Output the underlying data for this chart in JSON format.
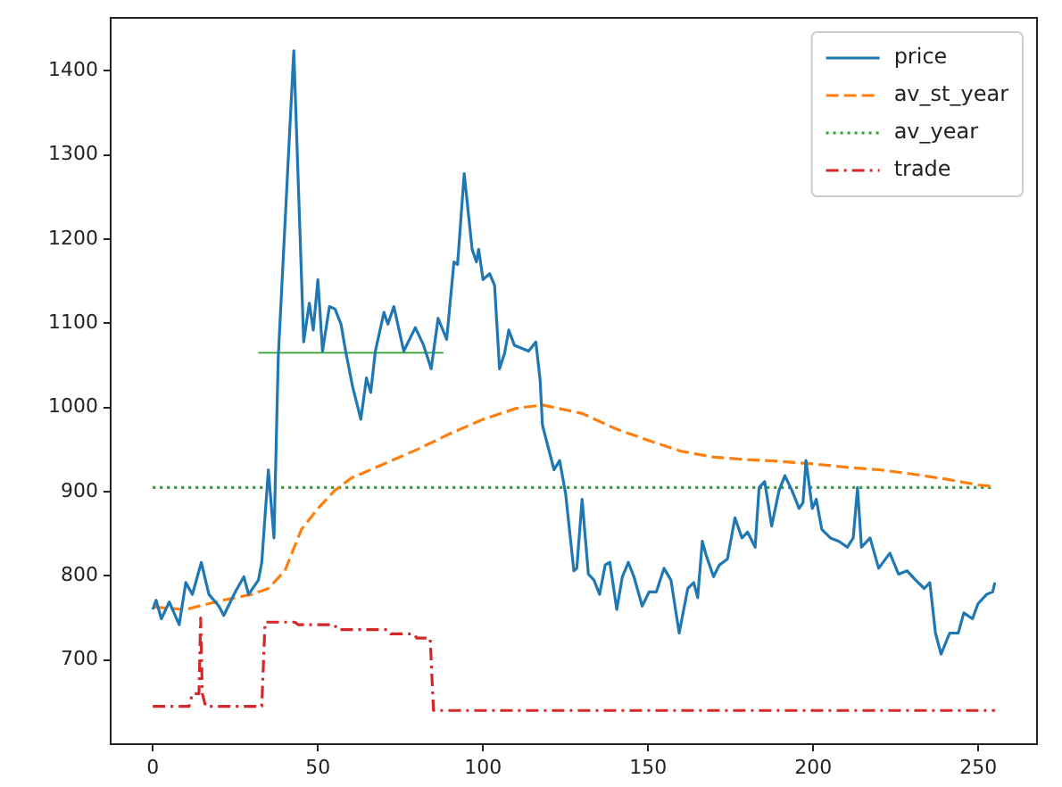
{
  "chart_data": {
    "type": "line",
    "xlim": [
      -12.75,
      267.75
    ],
    "ylim": [
      600,
      1463
    ],
    "xticks": [
      0,
      50,
      100,
      150,
      200,
      250
    ],
    "yticks": [
      700,
      800,
      900,
      1000,
      1100,
      1200,
      1300,
      1400
    ],
    "grid": false,
    "legend": "top right",
    "marker": "none",
    "series": [
      {
        "name": "price",
        "color": "#1f77b4",
        "line_style": "solid",
        "x": [
          0,
          1,
          2.6,
          5,
          8,
          10,
          12,
          14.7,
          17,
          20,
          21.5,
          25,
          27.6,
          29,
          32,
          33,
          35,
          36.7,
          38,
          41,
          42.7,
          45.7,
          47.4,
          48.6,
          50,
          51.4,
          53.5,
          55.2,
          57,
          58.4,
          60.5,
          63,
          64.7,
          66,
          67.4,
          70,
          71.2,
          73,
          76,
          79.5,
          82,
          84.3,
          86.4,
          89,
          91.2,
          92.3,
          94.3,
          96.7,
          98,
          98.7,
          100,
          102,
          103.5,
          105,
          106.5,
          107.8,
          109.5,
          113.8,
          116,
          117.3,
          118,
          121.5,
          123.2,
          125,
          127.5,
          128.4,
          130,
          131.9,
          133.6,
          135.3,
          137,
          138.4,
          140.5,
          142.2,
          144,
          145.7,
          148.2,
          150.3,
          152.5,
          154.8,
          156.9,
          159.4,
          162,
          163.8,
          165,
          166.4,
          167.6,
          169.8,
          171.6,
          174,
          176.3,
          178.4,
          180.1,
          182.4,
          183.6,
          185.3,
          187.4,
          189.6,
          191.4,
          193.6,
          195.7,
          196.9,
          197.8,
          199.7,
          200.9,
          202.6,
          205.2,
          207.8,
          210.3,
          212.1,
          213.4,
          214.6,
          217.2,
          219.8,
          223.2,
          225.8,
          228.4,
          231,
          233.6,
          235.3,
          237,
          238.7,
          241.3,
          243.9,
          245.6,
          248.2,
          249.9,
          252.5,
          254.3,
          255
        ],
        "values": [
          760,
          771,
          749,
          769,
          742,
          792,
          778,
          816,
          778,
          764,
          753,
          781,
          799,
          778,
          795,
          816,
          926,
          845,
          1060,
          1293,
          1424,
          1078,
          1124,
          1092,
          1152,
          1067,
          1120,
          1117,
          1099,
          1067,
          1025,
          986,
          1035,
          1018,
          1067,
          1113,
          1099,
          1120,
          1067,
          1095,
          1074,
          1046,
          1106,
          1081,
          1173,
          1170,
          1278,
          1188,
          1173,
          1188,
          1152,
          1159,
          1145,
          1046,
          1064,
          1092,
          1074,
          1067,
          1078,
          1032,
          979,
          926,
          937,
          898,
          806,
          809,
          891,
          802,
          795,
          778,
          813,
          816,
          760,
          799,
          816,
          799,
          764,
          781,
          781,
          809,
          795,
          732,
          785,
          792,
          774,
          841,
          824,
          799,
          813,
          820,
          869,
          845,
          852,
          834,
          905,
          912,
          859,
          901,
          919,
          901,
          880,
          887,
          937,
          880,
          891,
          855,
          845,
          841,
          834,
          845,
          905,
          834,
          845,
          809,
          827,
          802,
          806,
          795,
          785,
          792,
          732,
          707,
          732,
          732,
          756,
          749,
          767,
          778,
          781,
          792
        ]
      },
      {
        "name": "av_st_year",
        "color": "#ff7f0e",
        "line_style": "dashed",
        "x": [
          0,
          10,
          20,
          30,
          35,
          40,
          45,
          50,
          55,
          60,
          70,
          80,
          90,
          100,
          110,
          118,
          130,
          140,
          150,
          160,
          170,
          180,
          190,
          200,
          210,
          220,
          230,
          240,
          250,
          255
        ],
        "values": [
          763,
          760,
          770,
          778,
          785,
          806,
          855,
          880,
          901,
          916,
          933,
          950,
          969,
          986,
          999,
          1003,
          993,
          975,
          961,
          948,
          941,
          938,
          936,
          933,
          929,
          926,
          921,
          915,
          908,
          906
        ]
      },
      {
        "name": "av_year",
        "color": "#2ca02c",
        "line_style": "dotted",
        "x": [
          0,
          255
        ],
        "values": [
          905,
          905
        ]
      },
      {
        "name": "trade",
        "color": "#d62728",
        "line_style": "dashdot",
        "x": [
          0,
          11,
          12,
          14,
          14.5,
          15,
          16,
          33,
          34,
          43,
          44,
          55,
          56,
          71,
          72,
          79,
          80,
          84,
          85,
          255
        ],
        "values": [
          645,
          645,
          660,
          660,
          750,
          660,
          645,
          645,
          745,
          745,
          742,
          742,
          736,
          736,
          731,
          731,
          726,
          726,
          640,
          640
        ]
      },
      {
        "color": "#2ca02c",
        "line_style": "solid",
        "x": [
          32,
          88
        ],
        "values": [
          1065,
          1065
        ]
      }
    ]
  }
}
